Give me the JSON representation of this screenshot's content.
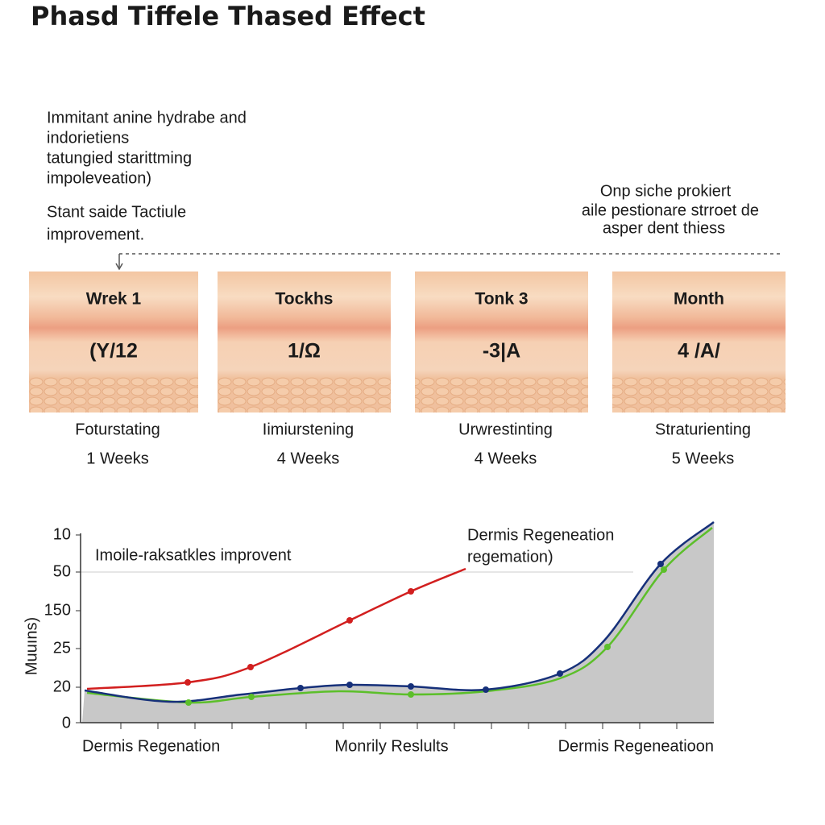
{
  "header": {
    "title": "Phasd Tiffele  Thased Effect"
  },
  "intro": {
    "lines": [
      "Immitant anine hydrabe and",
      "indorietiens",
      "tatungied starittming",
      "impoleveation)"
    ],
    "note": [
      "Stant saide Tactiule",
      "improvement."
    ]
  },
  "callout": {
    "lines": [
      "Onp siche prokiert",
      "aile pestionare strroet de",
      "asper dent thiess"
    ]
  },
  "panels": [
    {
      "label": "Wrek 1",
      "code": "(Y/12",
      "caption": "Foturstating",
      "duration": "1 Weeks"
    },
    {
      "label": "Tockhs",
      "code": "1/Ω",
      "caption": "Iimiurstening",
      "duration": "4 Weeks"
    },
    {
      "label": "Tonk 3",
      "code": "-3|A",
      "caption": "Urwrestinting",
      "duration": "4 Weeks"
    },
    {
      "label": "Month",
      "code": "4 /A/",
      "caption": "Straturienting",
      "duration": "5 Weeks"
    }
  ],
  "chart": {
    "y_labels": [
      "10",
      "50",
      "150",
      "25",
      "20",
      "0"
    ],
    "axis_title": "Muuıns)",
    "annotation": "Imoile-raksatkles improvent",
    "legend": [
      "Dermis Regeneation",
      "regemation)"
    ],
    "x_labels": [
      "Dermis Regenation",
      "Monrily Reslults",
      "Dermis Regeneatioon"
    ]
  }
}
